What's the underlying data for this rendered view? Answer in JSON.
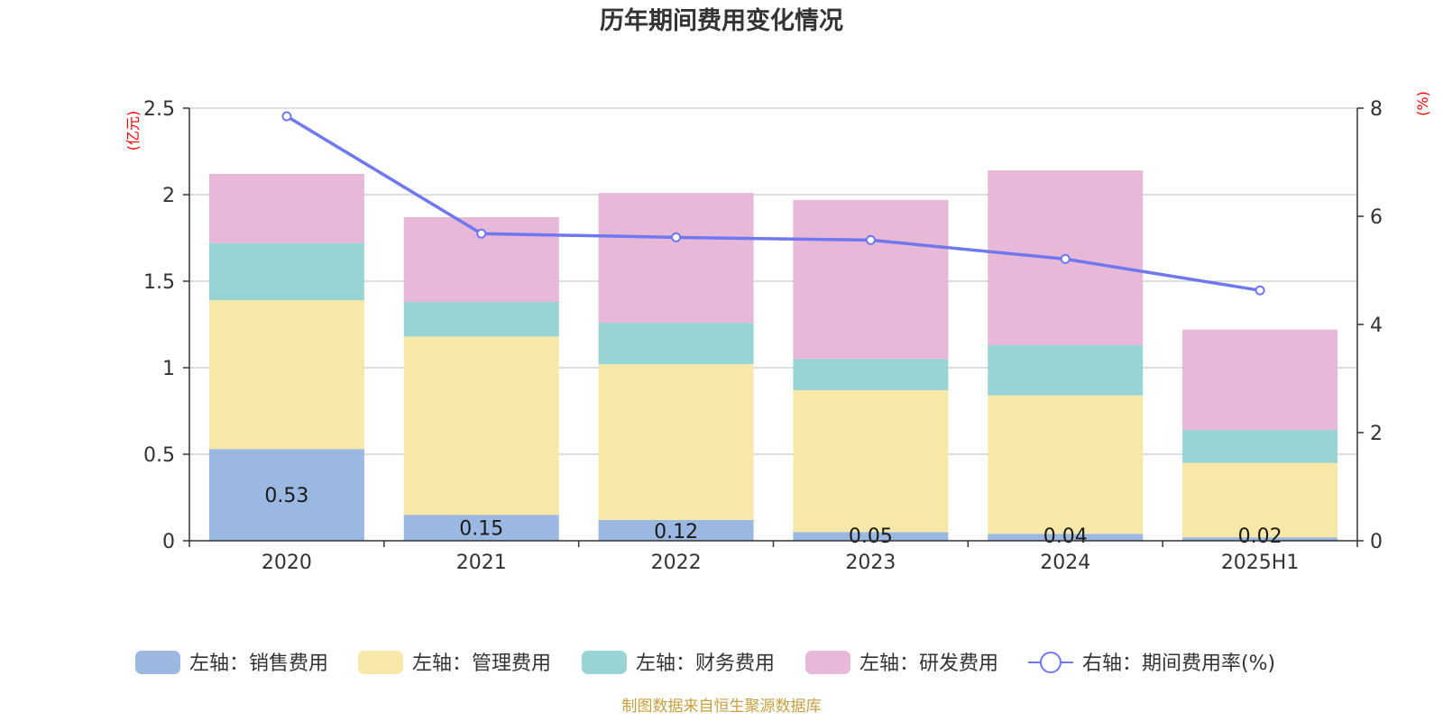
{
  "chart_data": {
    "type": "bar",
    "title": "历年期间费用变化情况",
    "categories": [
      "2020",
      "2021",
      "2022",
      "2023",
      "2024",
      "2025H1"
    ],
    "stacked": true,
    "left_axis": {
      "unit": "(亿元)",
      "ylim": [
        0,
        2.5
      ],
      "ticks": [
        "0",
        "0.5",
        "1",
        "1.5",
        "2",
        "2.5"
      ]
    },
    "right_axis": {
      "unit": "(%)",
      "ylim": [
        0,
        8
      ],
      "ticks": [
        "0",
        "2",
        "4",
        "6",
        "8"
      ]
    },
    "grid": true,
    "series": [
      {
        "name": "左轴：销售费用",
        "axis": "left",
        "color": "#9bb8e2",
        "values": [
          0.53,
          0.15,
          0.12,
          0.05,
          0.04,
          0.02
        ],
        "labels": [
          "0.53",
          "0.15",
          "0.12",
          "0.05",
          "0.04",
          "0.02"
        ]
      },
      {
        "name": "左轴：管理费用",
        "axis": "left",
        "color": "#f8e8a8",
        "values": [
          0.86,
          1.03,
          0.9,
          0.82,
          0.8,
          0.43
        ]
      },
      {
        "name": "左轴：财务费用",
        "axis": "left",
        "color": "#98d4d4",
        "values": [
          0.33,
          0.2,
          0.24,
          0.18,
          0.29,
          0.19
        ]
      },
      {
        "name": "左轴：研发费用",
        "axis": "left",
        "color": "#e8b8d8",
        "values": [
          0.4,
          0.49,
          0.75,
          0.92,
          1.01,
          0.58
        ]
      },
      {
        "name": "右轴：期间费用率(%)",
        "axis": "right",
        "type": "line",
        "color": "#7078f0",
        "values": [
          7.85,
          5.68,
          5.61,
          5.56,
          5.21,
          4.63
        ]
      }
    ],
    "legend_position": "bottom"
  },
  "footer": {
    "source": "制图数据来自恒生聚源数据库"
  }
}
